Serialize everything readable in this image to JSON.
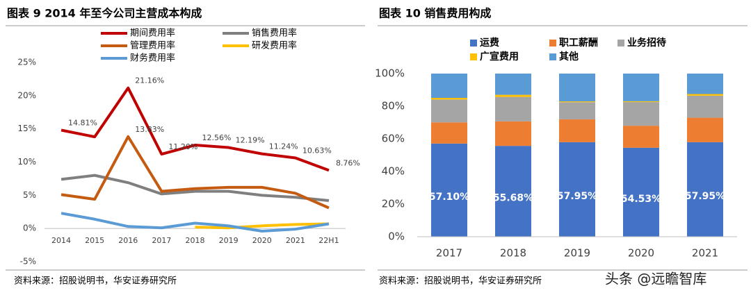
{
  "chart_data": [
    {
      "type": "line",
      "title": "图表 9 2014 年至今公司主营成本构成",
      "source": "资料来源：招股说明书，华安证券研究所",
      "categories": [
        "2014",
        "2015",
        "2016",
        "2017",
        "2018",
        "2019",
        "2020",
        "2021",
        "22H1"
      ],
      "ylim": [
        -5,
        25
      ],
      "yticks": [
        {
          "value": -5,
          "label": "-5%"
        },
        {
          "value": 0,
          "label": "0%"
        },
        {
          "value": 5,
          "label": "5%"
        },
        {
          "value": 10,
          "label": "10%"
        },
        {
          "value": 15,
          "label": "15%"
        },
        {
          "value": 20,
          "label": "20%"
        },
        {
          "value": 25,
          "label": "25%"
        }
      ],
      "series": [
        {
          "name": "期间费用率",
          "color": "#c00000",
          "values": [
            14.81,
            13.8,
            21.16,
            11.2,
            12.56,
            12.19,
            11.24,
            10.63,
            8.76
          ],
          "value_labels": [
            "14.81%",
            null,
            "21.16%",
            "11.20%",
            "12.56%",
            "12.19%",
            "11.24%",
            "10.63%",
            "8.76%"
          ]
        },
        {
          "name": "销售费用率",
          "color": "#7f7f7f",
          "values": [
            7.4,
            8.0,
            6.9,
            5.2,
            5.6,
            5.6,
            5.0,
            4.7,
            4.2
          ]
        },
        {
          "name": "管理费用率",
          "color": "#c55a11",
          "values": [
            5.1,
            4.4,
            13.83,
            5.6,
            6.0,
            6.2,
            6.2,
            5.3,
            3.1
          ],
          "value_labels": [
            null,
            null,
            "13.83%",
            null,
            null,
            null,
            null,
            null,
            null
          ]
        },
        {
          "name": "研发费用率",
          "color": "#ffc000",
          "values": [
            null,
            null,
            null,
            null,
            0.2,
            0.1,
            0.4,
            0.6,
            0.7
          ]
        },
        {
          "name": "财务费用率",
          "color": "#5b9bd5",
          "values": [
            2.3,
            1.4,
            0.3,
            0.1,
            0.8,
            0.4,
            -0.4,
            -0.1,
            0.7
          ]
        }
      ]
    },
    {
      "type": "stacked_bar",
      "title": "图表 10  销售费用构成",
      "source": "资料来源：招股说明书，华安证券研究所",
      "categories": [
        "2017",
        "2018",
        "2019",
        "2020",
        "2021"
      ],
      "ylim": [
        0,
        100
      ],
      "yticks": [
        {
          "value": 0,
          "label": "0%"
        },
        {
          "value": 20,
          "label": "20%"
        },
        {
          "value": 40,
          "label": "40%"
        },
        {
          "value": 60,
          "label": "60%"
        },
        {
          "value": 80,
          "label": "80%"
        },
        {
          "value": 100,
          "label": "100%"
        }
      ],
      "series": [
        {
          "name": "运费",
          "color": "#4472c4",
          "values": [
            57.1,
            55.68,
            57.95,
            54.53,
            57.95
          ],
          "value_labels": [
            "57.10%",
            "55.68%",
            "57.95%",
            "54.53%",
            "57.95%"
          ]
        },
        {
          "name": "职工薪酬",
          "color": "#ed7d31",
          "values": [
            13,
            15,
            14,
            13.5,
            15
          ]
        },
        {
          "name": "业务招待",
          "color": "#a5a5a5",
          "values": [
            14,
            15,
            10.5,
            14.5,
            13.5
          ]
        },
        {
          "name": "广宣费用",
          "color": "#ffc000",
          "values": [
            1,
            1.3,
            0.5,
            0.5,
            1
          ]
        },
        {
          "name": "其他",
          "color": "#5b9bd5",
          "values": [
            14.9,
            13.02,
            17.05,
            16.97,
            12.55
          ]
        }
      ]
    }
  ],
  "watermark": "头条 @远瞻智库"
}
